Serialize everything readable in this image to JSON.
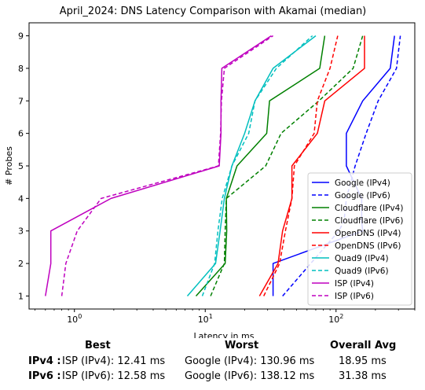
{
  "chart_data": {
    "type": "line",
    "title": "April_2024: DNS Latency Comparison with Akamai (median)",
    "xlabel": "Latency in ms",
    "ylabel": "# Probes",
    "xscale": "log",
    "xlim": [
      0.45,
      400
    ],
    "ylim": [
      0.6,
      9.4
    ],
    "x_ticks": [
      "10^0",
      "10^1",
      "10^2"
    ],
    "y_ticks": [
      "1",
      "2",
      "3",
      "4",
      "5",
      "6",
      "7",
      "8",
      "9"
    ],
    "legend_position": "lower right",
    "grid": false,
    "series": [
      {
        "name": "Google (IPv4)",
        "color": "#0000ff",
        "dash": false,
        "x": [
          33,
          33,
          160,
          157,
          157,
          120,
          120,
          160,
          160,
          260,
          280
        ],
        "y": [
          1,
          2,
          3,
          3.3,
          4,
          5,
          6,
          7,
          7,
          8,
          9
        ]
      },
      {
        "name": "Google (IPv6)",
        "color": "#0000ff",
        "dash": true,
        "x": [
          39,
          64,
          105,
          115,
          120,
          140,
          170,
          210,
          255,
          290,
          310
        ],
        "y": [
          1,
          2,
          3,
          3.3,
          4,
          5,
          6,
          7,
          7.6,
          8,
          9
        ]
      },
      {
        "name": "Cloudflare (IPv4)",
        "color": "#008000",
        "dash": false,
        "x": [
          8.5,
          14.2,
          14.6,
          14.5,
          17.5,
          29.5,
          31,
          75,
          82
        ],
        "y": [
          1,
          2,
          3,
          4,
          5,
          6,
          7,
          8,
          9
        ]
      },
      {
        "name": "Cloudflare (IPv6)",
        "color": "#008000",
        "dash": true,
        "x": [
          11,
          14,
          14.2,
          14.5,
          29,
          38,
          74,
          135,
          160
        ],
        "y": [
          1,
          2,
          3,
          4,
          5,
          6,
          7,
          8,
          9
        ]
      },
      {
        "name": "OpenDNS (IPv4)",
        "color": "#ff0000",
        "dash": false,
        "x": [
          26,
          36,
          39,
          46,
          46,
          72,
          82,
          165,
          165
        ],
        "y": [
          1,
          2,
          3,
          4,
          5,
          6,
          7,
          8,
          9
        ]
      },
      {
        "name": "OpenDNS (IPv6)",
        "color": "#ff0000",
        "dash": true,
        "x": [
          28,
          37,
          41,
          46,
          48,
          68,
          72,
          90,
          103
        ],
        "y": [
          1,
          2,
          3,
          4,
          5,
          6,
          7,
          8,
          9
        ]
      },
      {
        "name": "Quad9 (IPv4)",
        "color": "#00bfbf",
        "dash": false,
        "x": [
          7.3,
          12,
          13,
          14,
          16,
          20,
          24,
          33,
          70
        ],
        "y": [
          1,
          2,
          3,
          4,
          5,
          6,
          7,
          8,
          9
        ]
      },
      {
        "name": "Quad9 (IPv6)",
        "color": "#00bfbf",
        "dash": true,
        "x": [
          9.5,
          11.8,
          12.5,
          13.5,
          16,
          21.5,
          24,
          35,
          66
        ],
        "y": [
          1,
          2,
          3,
          4,
          5,
          6,
          7,
          8,
          9
        ]
      },
      {
        "name": "ISP (IPv4)",
        "color": "#bf00bf",
        "dash": false,
        "x": [
          0.6,
          0.66,
          0.66,
          1.9,
          12.8,
          13.2,
          13.2,
          13.4,
          32
        ],
        "y": [
          1,
          2,
          3,
          4,
          5,
          6,
          7,
          8,
          9
        ]
      },
      {
        "name": "ISP (IPv6)",
        "color": "#bf00bf",
        "dash": true,
        "x": [
          0.8,
          0.86,
          1.05,
          1.6,
          12.6,
          13.1,
          13.3,
          14,
          33
        ],
        "y": [
          1,
          2,
          3,
          4,
          5,
          6,
          7,
          8,
          9
        ]
      }
    ]
  },
  "summary": {
    "headers": {
      "best": "Best",
      "worst": "Worst",
      "avg": "Overall Avg"
    },
    "rows": [
      {
        "label": "IPv4 :",
        "best": "ISP (IPv4): 12.41 ms",
        "worst": "Google (IPv4): 130.96 ms",
        "avg": "18.95 ms"
      },
      {
        "label": "IPv6 :",
        "best": "ISP (IPv6): 12.58 ms",
        "worst": "Google (IPv6): 138.12 ms",
        "avg": "31.38 ms"
      }
    ]
  }
}
